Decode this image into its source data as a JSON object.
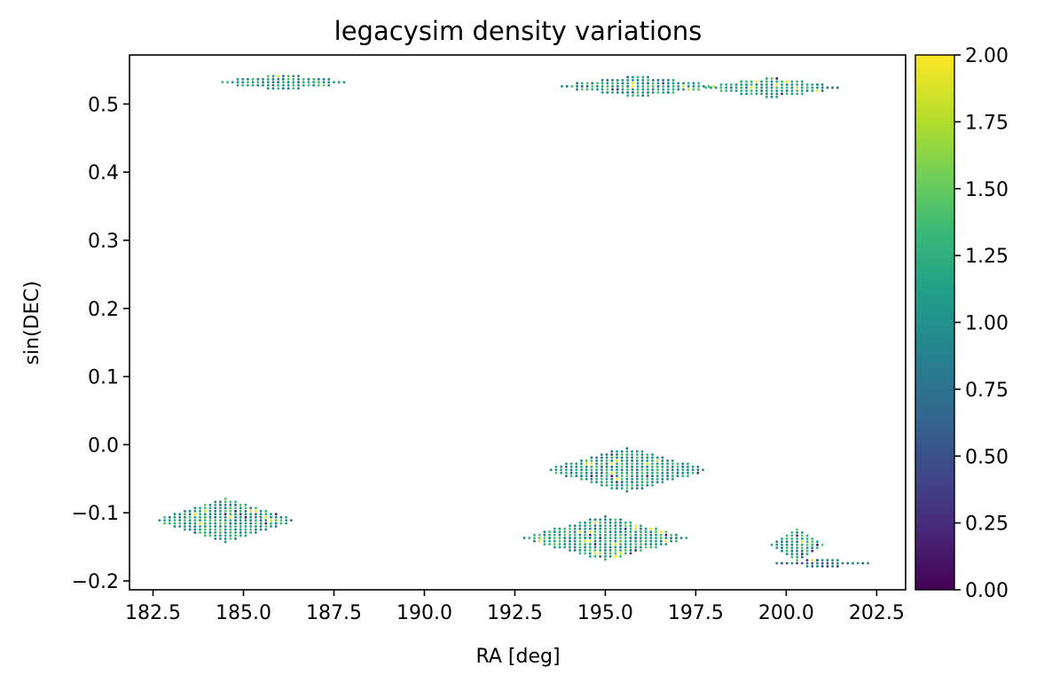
{
  "chart_data": {
    "type": "scatter",
    "title": "legacysim density variations",
    "xlabel": "RA [deg]",
    "ylabel": "sin(DEC)",
    "xlim": [
      181.85,
      203.3
    ],
    "ylim": [
      -0.213,
      0.572
    ],
    "x_ticks": [
      182.5,
      185.0,
      187.5,
      190.0,
      192.5,
      195.0,
      197.5,
      200.0,
      202.5
    ],
    "x_tick_labels": [
      "182.5",
      "185.0",
      "187.5",
      "190.0",
      "192.5",
      "195.0",
      "197.5",
      "200.0",
      "202.5"
    ],
    "y_ticks": [
      -0.2,
      -0.1,
      0.0,
      0.1,
      0.2,
      0.3,
      0.4,
      0.5
    ],
    "y_tick_labels": [
      "−0.2",
      "−0.1",
      "0.0",
      "0.1",
      "0.2",
      "0.3",
      "0.4",
      "0.5"
    ],
    "grid": false,
    "colorbar": {
      "colormap": "viridis",
      "range": [
        0.0,
        2.0
      ],
      "ticks": [
        0.0,
        0.25,
        0.5,
        0.75,
        1.0,
        1.25,
        1.5,
        1.75,
        2.0
      ],
      "tick_labels": [
        "0.00",
        "0.25",
        "0.50",
        "0.75",
        "1.00",
        "1.25",
        "1.50",
        "1.75",
        "2.00"
      ],
      "colors": [
        "#440154",
        "#482878",
        "#3e4989",
        "#31688e",
        "#26828e",
        "#1f9e89",
        "#35b779",
        "#6ece58",
        "#b5de2b",
        "#fde725"
      ]
    },
    "regions": [
      {
        "ra_center": 184.5,
        "ra_halfwidth": 1.85,
        "sindec_center": -0.111,
        "sindec_halfheight": 0.03,
        "ra_step": 0.14,
        "sindec_step": 0.0045,
        "value_mean": 1.1
      },
      {
        "ra_center": 186.1,
        "ra_halfwidth": 1.7,
        "sindec_center": 0.532,
        "sindec_halfheight": 0.009,
        "ra_step": 0.14,
        "sindec_step": 0.0045,
        "value_mean": 1.1
      },
      {
        "ra_center": 195.0,
        "ra_halfwidth": 2.2,
        "sindec_center": -0.137,
        "sindec_halfheight": 0.031,
        "ra_step": 0.14,
        "sindec_step": 0.0045,
        "value_mean": 1.15
      },
      {
        "ra_center": 195.6,
        "ra_halfwidth": 2.15,
        "sindec_center": -0.037,
        "sindec_halfheight": 0.031,
        "ra_step": 0.14,
        "sindec_step": 0.0045,
        "value_mean": 1.1
      },
      {
        "ra_center": 195.9,
        "ra_halfwidth": 2.1,
        "sindec_center": 0.526,
        "sindec_halfheight": 0.014,
        "ra_step": 0.14,
        "sindec_step": 0.0045,
        "value_mean": 1.1
      },
      {
        "ra_center": 199.6,
        "ra_halfwidth": 1.85,
        "sindec_center": 0.524,
        "sindec_halfheight": 0.013,
        "ra_step": 0.14,
        "sindec_step": 0.0045,
        "value_mean": 1.1
      },
      {
        "ra_center": 200.3,
        "ra_halfwidth": 0.75,
        "sindec_center": -0.147,
        "sindec_halfheight": 0.022,
        "ra_step": 0.14,
        "sindec_step": 0.0045,
        "value_mean": 1.1
      },
      {
        "ra_center": 201.0,
        "ra_halfwidth": 1.2,
        "sindec_center": -0.174,
        "sindec_halfheight": 0.004,
        "ra_step": 0.14,
        "sindec_step": 0.0045,
        "value_mean": 0.7
      }
    ]
  }
}
